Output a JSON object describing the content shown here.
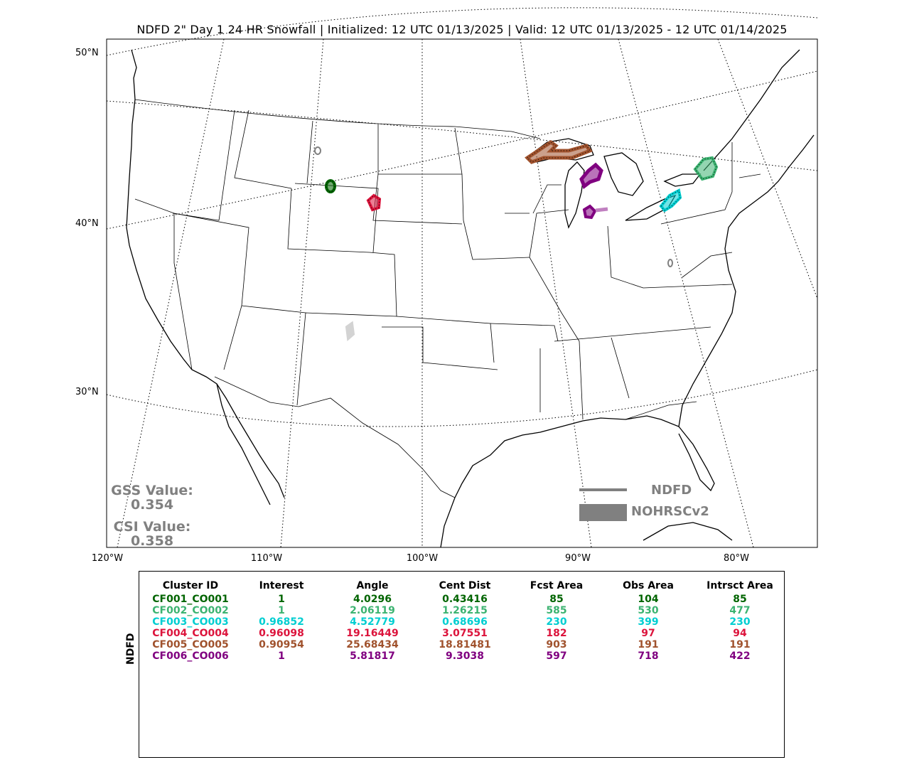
{
  "title": "NDFD 2\" Day 1 24 HR Snowfall | Initialized: 12 UTC 01/13/2025 | Valid: 12 UTC 01/13/2025 - 12 UTC 01/14/2025",
  "lat_labels": [
    "50°N",
    "40°N",
    "30°N"
  ],
  "lon_labels": [
    "120°W",
    "110°W",
    "100°W",
    "90°W",
    "80°W"
  ],
  "scores": {
    "gss_label": "GSS Value:",
    "gss_value": "0.354",
    "csi_label": "CSI Value:",
    "csi_value": "0.358"
  },
  "legend": {
    "forecast_label": "NDFD",
    "observed_label": "NOHRSCv2"
  },
  "table": {
    "ylabel": "NDFD",
    "headers": [
      "Cluster ID",
      "Interest",
      "Angle",
      "Cent Dist",
      "Fcst Area",
      "Obs Area",
      "Intrsct Area"
    ],
    "rows": [
      {
        "color": "#006400",
        "cells": [
          "CF001_CO001",
          "1",
          "4.0296",
          "0.43416",
          "85",
          "104",
          "85"
        ]
      },
      {
        "color": "#3cb371",
        "cells": [
          "CF002_CO002",
          "1",
          "2.06119",
          "1.26215",
          "585",
          "530",
          "477"
        ]
      },
      {
        "color": "#00ced1",
        "cells": [
          "CF003_CO003",
          "0.96852",
          "4.52779",
          "0.68696",
          "230",
          "399",
          "230"
        ]
      },
      {
        "color": "#dc143c",
        "cells": [
          "CF004_CO004",
          "0.96098",
          "19.16449",
          "3.07551",
          "182",
          "97",
          "94"
        ]
      },
      {
        "color": "#a0522d",
        "cells": [
          "CF005_CO005",
          "0.90954",
          "25.68434",
          "18.81481",
          "903",
          "191",
          "191"
        ]
      },
      {
        "color": "#800080",
        "cells": [
          "CF006_CO006",
          "1",
          "5.81817",
          "9.3038",
          "597",
          "718",
          "422"
        ]
      }
    ]
  },
  "clusters": [
    {
      "id": "CF001_CO001",
      "color": "#006400",
      "region": "Wyoming"
    },
    {
      "id": "CF002_CO002",
      "color": "#3cb371",
      "region": "Central New York"
    },
    {
      "id": "CF003_CO003",
      "color": "#00ced1",
      "region": "Lake Erie shore"
    },
    {
      "id": "CF004_CO004",
      "color": "#dc143c",
      "region": "Nebraska Panhandle"
    },
    {
      "id": "CF005_CO005",
      "color": "#a0522d",
      "region": "Lake Superior south shore"
    },
    {
      "id": "CF006_CO006",
      "color": "#800080",
      "region": "Lower Michigan"
    }
  ]
}
